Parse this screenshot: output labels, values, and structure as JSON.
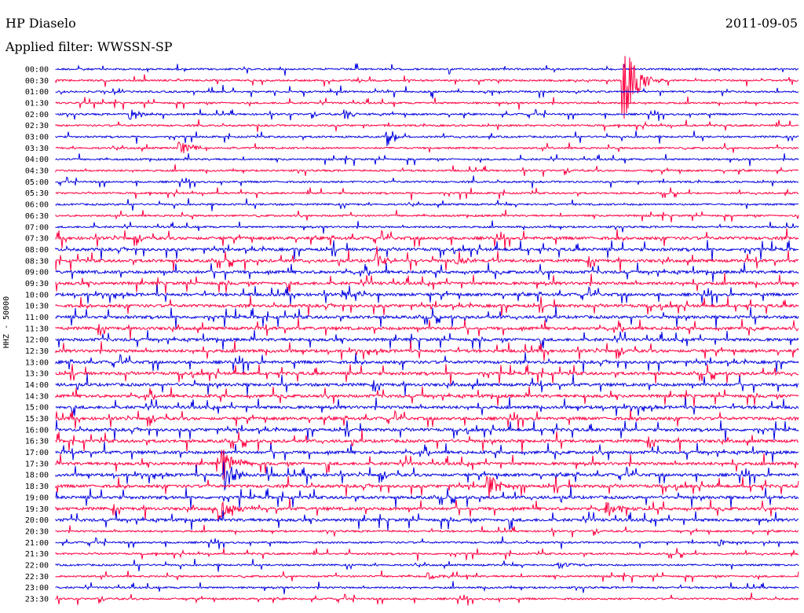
{
  "header": {
    "station": "HP Diaselo",
    "date": "2011-09-05",
    "filter": "Applied filter: WWSSN-SP"
  },
  "chart_data": {
    "type": "line",
    "title": "HP Diaselo",
    "subtitle": "Applied filter: WWSSN-SP",
    "ylabel": "HHZ - 50000",
    "xlabel": "",
    "colors": [
      "#0000e0",
      "#ff0040"
    ],
    "rows": [
      "00:00",
      "00:30",
      "01:00",
      "01:30",
      "02:00",
      "02:30",
      "03:00",
      "03:30",
      "04:00",
      "04:30",
      "05:00",
      "05:30",
      "06:00",
      "06:30",
      "07:00",
      "07:30",
      "08:00",
      "08:30",
      "09:00",
      "09:30",
      "10:00",
      "10:30",
      "11:00",
      "11:30",
      "12:00",
      "12:30",
      "13:00",
      "13:30",
      "14:00",
      "14:30",
      "15:00",
      "15:30",
      "16:00",
      "16:30",
      "17:00",
      "17:30",
      "18:00",
      "18:30",
      "19:00",
      "19:30",
      "20:00",
      "20:30",
      "21:00",
      "21:30",
      "22:00",
      "22:30",
      "23:00",
      "23:30"
    ],
    "events": [
      {
        "row": "00:30",
        "t": 0.762,
        "amp": 70
      },
      {
        "row": "02:00",
        "t": 0.098,
        "amp": 10
      },
      {
        "row": "02:00",
        "t": 0.389,
        "amp": 7
      },
      {
        "row": "03:00",
        "t": 0.443,
        "amp": 9
      },
      {
        "row": "03:30",
        "t": 0.164,
        "amp": 12
      },
      {
        "row": "08:30",
        "t": 0.429,
        "amp": 10
      },
      {
        "row": "08:30",
        "t": 0.538,
        "amp": 6
      },
      {
        "row": "10:00",
        "t": 0.384,
        "amp": 8
      },
      {
        "row": "17:30",
        "t": 0.223,
        "amp": 25
      },
      {
        "row": "18:00",
        "t": 0.226,
        "amp": 22
      },
      {
        "row": "18:30",
        "t": 0.579,
        "amp": 20
      },
      {
        "row": "19:30",
        "t": 0.217,
        "amp": 18
      },
      {
        "row": "19:30",
        "t": 0.74,
        "amp": 12
      },
      {
        "row": "21:00",
        "t": 0.89,
        "amp": 6
      },
      {
        "row": "22:00",
        "t": 0.676,
        "amp": 6
      },
      {
        "row": "22:30",
        "t": 0.5,
        "amp": 6
      }
    ]
  }
}
